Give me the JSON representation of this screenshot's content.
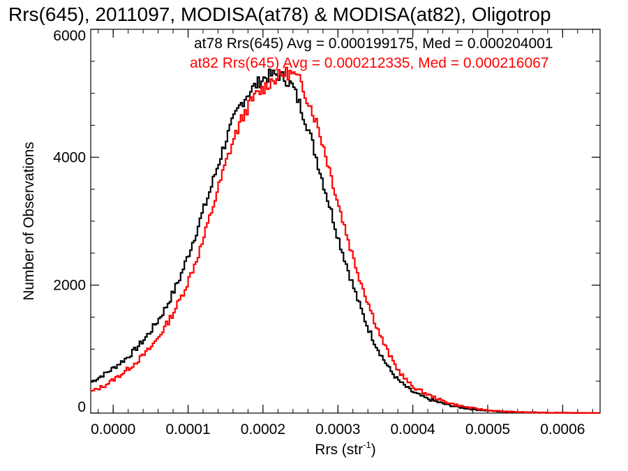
{
  "chart_data": {
    "type": "histogram",
    "title": "Rrs(645), 2011097, MODISA(at78) & MODISA(at82), Oligotrop",
    "xlabel": "Rrs (str",
    "xlabel_sup": "-1",
    "xlabel_close": ")",
    "ylabel": "Number of Observations",
    "xlim": [
      -3e-05,
      0.00065
    ],
    "ylim": [
      0,
      6000
    ],
    "x_tick_labels": [
      "0.0000",
      "0.0001",
      "0.0002",
      "0.0003",
      "0.0004",
      "0.0005",
      "0.0006"
    ],
    "x_tick_values": [
      0.0,
      0.0001,
      0.0002,
      0.0003,
      0.0004,
      0.0005,
      0.0006
    ],
    "y_tick_labels": [
      "0",
      "2000",
      "4000",
      "6000"
    ],
    "y_tick_values": [
      0,
      2000,
      4000,
      6000
    ],
    "legend": [
      {
        "text": "at78 Rrs(645) Avg = 0.000199175, Med = 0.000204001",
        "color": "#000000"
      },
      {
        "text": "at82 Rrs(645) Avg = 0.000212335, Med = 0.000216067",
        "color": "#ff0000"
      }
    ],
    "series": [
      {
        "name": "at78",
        "color": "#000000",
        "x": [
          -3e-05,
          -2e-05,
          -1e-05,
          0.0,
          1e-05,
          2e-05,
          3e-05,
          4e-05,
          5e-05,
          6e-05,
          7e-05,
          8e-05,
          9e-05,
          0.0001,
          0.00011,
          0.00012,
          0.00013,
          0.00014,
          0.00015,
          0.00016,
          0.00017,
          0.00018,
          0.00019,
          0.0002,
          0.00021,
          0.00022,
          0.00023,
          0.00024,
          0.00025,
          0.00026,
          0.00027,
          0.00028,
          0.00029,
          0.0003,
          0.00031,
          0.00032,
          0.00033,
          0.00034,
          0.00035,
          0.00036,
          0.00037,
          0.00038,
          0.00039,
          0.0004,
          0.00042,
          0.00044,
          0.00046,
          0.00048,
          0.0005,
          0.00052,
          0.00055,
          0.00058,
          0.00062,
          0.00065
        ],
        "y": [
          480,
          550,
          620,
          700,
          790,
          880,
          1000,
          1130,
          1280,
          1450,
          1640,
          1880,
          2140,
          2460,
          2800,
          3150,
          3500,
          3880,
          4250,
          4560,
          4820,
          5000,
          5120,
          5230,
          5280,
          5290,
          5230,
          5100,
          4800,
          4470,
          4050,
          3620,
          3200,
          2760,
          2380,
          2000,
          1650,
          1340,
          1080,
          860,
          670,
          520,
          420,
          330,
          220,
          150,
          95,
          60,
          38,
          22,
          12,
          6,
          3,
          1
        ]
      },
      {
        "name": "at82",
        "color": "#ff0000",
        "x": [
          -3e-05,
          -2e-05,
          -1e-05,
          0.0,
          1e-05,
          2e-05,
          3e-05,
          4e-05,
          5e-05,
          6e-05,
          7e-05,
          8e-05,
          9e-05,
          0.0001,
          0.00011,
          0.00012,
          0.00013,
          0.00014,
          0.00015,
          0.00016,
          0.00017,
          0.00018,
          0.00019,
          0.0002,
          0.00021,
          0.00022,
          0.00023,
          0.00024,
          0.00025,
          0.00026,
          0.00027,
          0.00028,
          0.00029,
          0.0003,
          0.00031,
          0.00032,
          0.00033,
          0.00034,
          0.00035,
          0.00036,
          0.00037,
          0.00038,
          0.00039,
          0.0004,
          0.00042,
          0.00044,
          0.00046,
          0.00048,
          0.0005,
          0.00052,
          0.00055,
          0.00058,
          0.00062,
          0.00065
        ],
        "y": [
          330,
          380,
          440,
          520,
          600,
          690,
          790,
          900,
          1020,
          1180,
          1360,
          1560,
          1790,
          2060,
          2360,
          2690,
          3100,
          3500,
          3890,
          4250,
          4550,
          4790,
          4960,
          5070,
          5180,
          5260,
          5320,
          5300,
          5180,
          4900,
          4600,
          4210,
          3760,
          3300,
          2870,
          2450,
          2080,
          1740,
          1410,
          1120,
          880,
          680,
          530,
          410,
          290,
          190,
          120,
          75,
          45,
          25,
          13,
          7,
          3,
          1
        ]
      }
    ]
  }
}
